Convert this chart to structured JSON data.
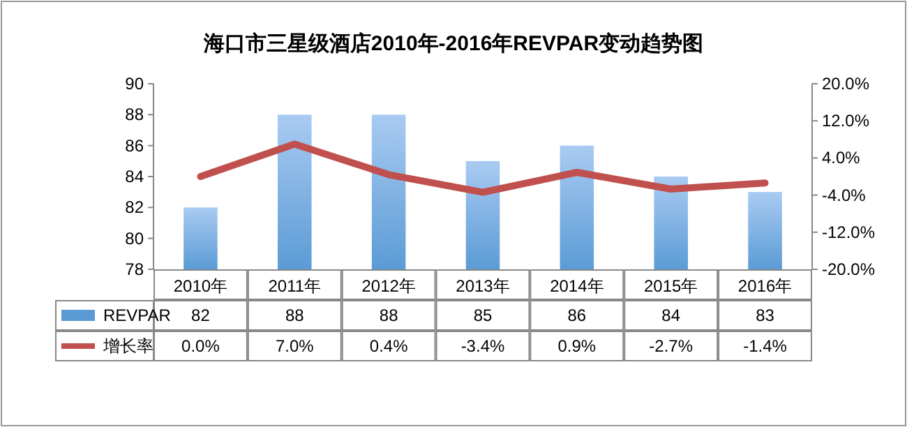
{
  "chart_data": {
    "type": "bar",
    "title": "海口市三星级酒店2010年-2016年REVPAR变动趋势图",
    "categories": [
      "2010年",
      "2011年",
      "2012年",
      "2013年",
      "2014年",
      "2015年",
      "2016年"
    ],
    "series": [
      {
        "name": "REVPAR",
        "color": "#5b9bd5",
        "values": [
          82,
          88,
          88,
          85,
          86,
          84,
          83
        ]
      },
      {
        "name": "增长率",
        "type": "line",
        "axis": "y2",
        "color": "#c0504d",
        "values": [
          0.0,
          7.0,
          0.4,
          -3.4,
          0.9,
          -2.7,
          -1.4
        ],
        "value_labels": [
          "0.0%",
          "7.0%",
          "0.4%",
          "-3.4%",
          "0.9%",
          "-2.7%",
          "-1.4%"
        ]
      }
    ],
    "ylim": [
      78,
      90
    ],
    "yticks": [
      78,
      80,
      82,
      84,
      86,
      88,
      90
    ],
    "y2lim": [
      -20,
      20
    ],
    "y2ticks": [
      {
        "value": -20,
        "label": "-20.0%"
      },
      {
        "value": -12,
        "label": "-12.0%"
      },
      {
        "value": -4,
        "label": "-4.0%"
      },
      {
        "value": 4,
        "label": "4.0%"
      },
      {
        "value": 12,
        "label": "12.0%"
      },
      {
        "value": 20,
        "label": "20.0%"
      }
    ],
    "data_labels": true,
    "legend": "bottom",
    "marker": "none",
    "line_style": "solid"
  }
}
